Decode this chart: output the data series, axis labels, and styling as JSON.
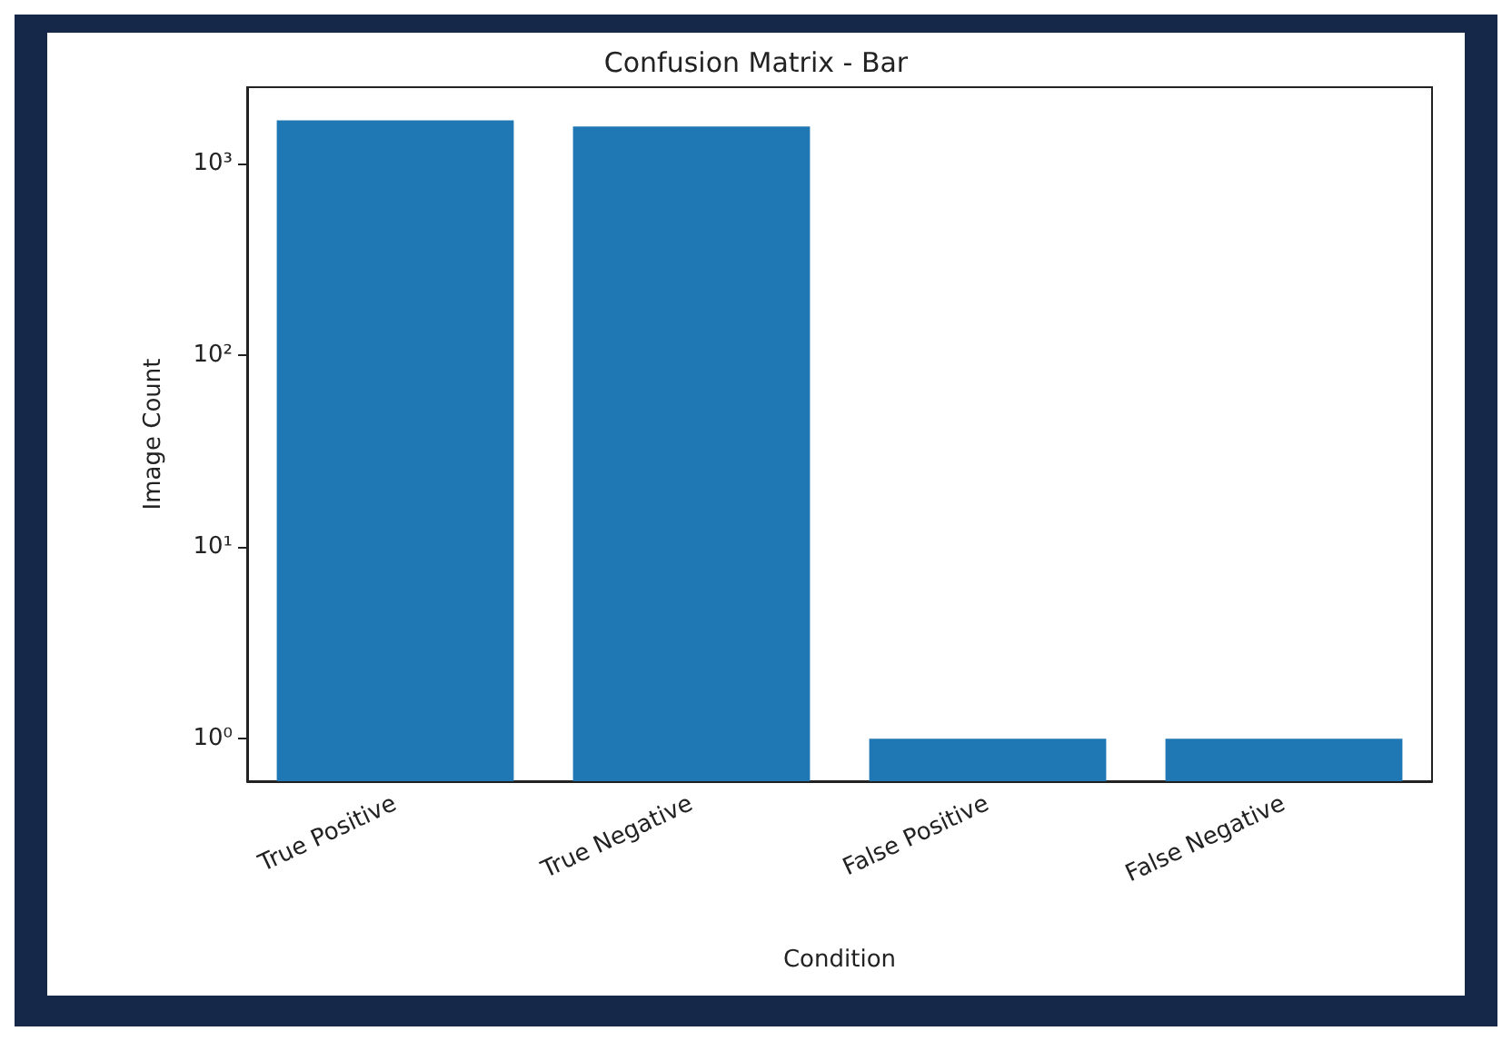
{
  "chart_data": {
    "type": "bar",
    "title": "Confusion Matrix - Bar",
    "xlabel": "Condition",
    "ylabel": "Image Count",
    "categories": [
      "True Positive",
      "True Negative",
      "False Positive",
      "False Negative"
    ],
    "values": [
      1680,
      1560,
      1,
      1
    ],
    "color": "#1f77b4",
    "log": "y",
    "ylim": [
      0.6,
      2500
    ],
    "yticks": [
      {
        "value": 1,
        "label": "10⁰"
      },
      {
        "value": 10,
        "label": "10¹"
      },
      {
        "value": 100,
        "label": "10²"
      },
      {
        "value": 1000,
        "label": "10³"
      }
    ],
    "grid": false
  }
}
